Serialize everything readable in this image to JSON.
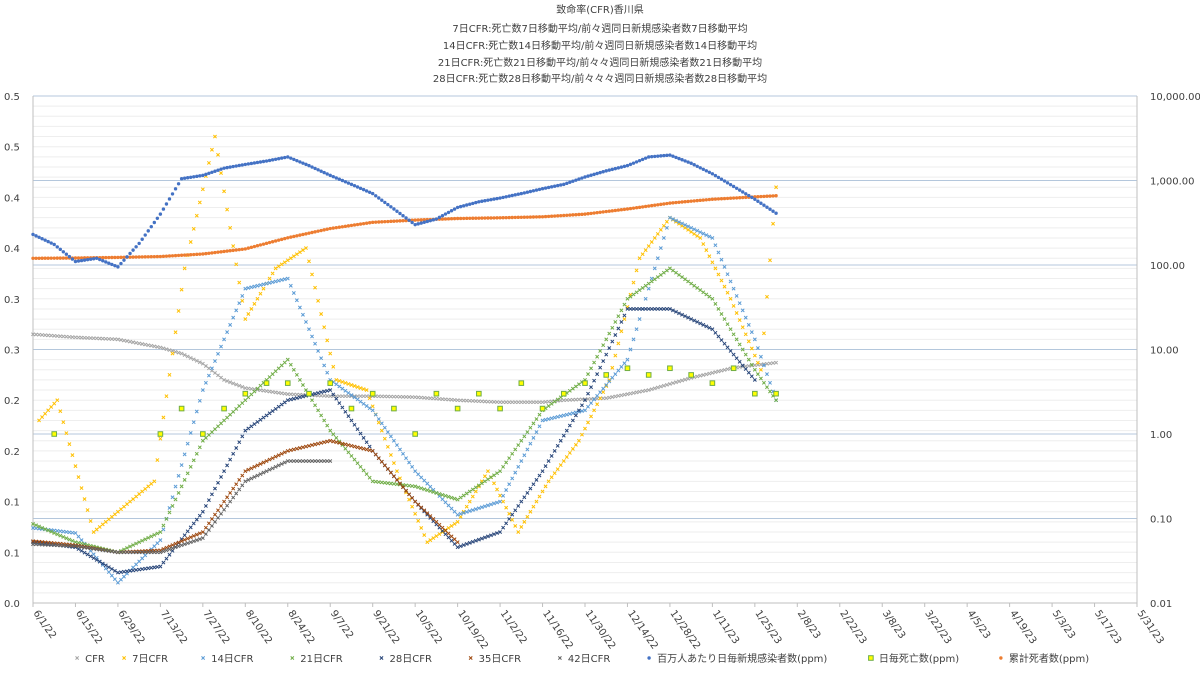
{
  "chart_data": {
    "type": "scatter",
    "title_lines": [
      "致命率(CFR)香川県",
      "7日CFR:死亡数7日移動平均/前々週同日新規感染者数7日移動平均",
      "14日CFR:死亡数14日移動平均/前々週同日新規感染者数14日移動平均",
      "21日CFR:死亡数21日移動平均/前々々週同日新規感染者数21日移動平均",
      "28日CFR:死亡数28日移動平均/前々々々週同日新規感染者数28日移動平均"
    ],
    "x_tick_labels": [
      "6/1/22",
      "6/15/22",
      "6/29/22",
      "7/13/22",
      "7/27/22",
      "8/10/22",
      "8/24/22",
      "9/7/22",
      "9/21/22",
      "10/5/22",
      "10/19/22",
      "11/2/22",
      "11/16/22",
      "11/30/22",
      "12/14/22",
      "12/28/22",
      "1/11/23",
      "1/25/23",
      "2/8/23",
      "2/22/23",
      "3/8/23",
      "3/22/23",
      "4/5/23",
      "4/19/23",
      "5/3/23",
      "5/17/23",
      "5/31/23"
    ],
    "left_axis_tick_labels": [
      "0.5",
      "0.5",
      "0.4",
      "0.4",
      "0.3",
      "0.3",
      "0.2",
      "0.2",
      "0.1",
      "0.1",
      "0.0"
    ],
    "right_axis_tick_labels": [
      "10,000.00",
      "1,000.00",
      "100.00",
      "10.00",
      "1.00",
      "0.10",
      "0.01"
    ],
    "left_axis_range": [
      0,
      0.5
    ],
    "right_axis_log_range": [
      0.01,
      10000
    ],
    "grid": true,
    "legend_position": "bottom",
    "legend": [
      {
        "name": "CFR",
        "color": "#a5a5a5",
        "marker": "x"
      },
      {
        "name": "7日CFR",
        "color": "#ffc000",
        "marker": "x"
      },
      {
        "name": "14日CFR",
        "color": "#5b9bd5",
        "marker": "x"
      },
      {
        "name": "21日CFR",
        "color": "#70ad47",
        "marker": "x"
      },
      {
        "name": "28日CFR",
        "color": "#264478",
        "marker": "x"
      },
      {
        "name": "35日CFR",
        "color": "#9e480e",
        "marker": "x"
      },
      {
        "name": "42日CFR",
        "color": "#636363",
        "marker": "x"
      },
      {
        "name": "百万人あたり日毎新規感染者数(ppm)",
        "color": "#4472c4",
        "marker": "dot"
      },
      {
        "name": "日毎死亡数(ppm)",
        "color": "#70ad47",
        "marker": "square"
      },
      {
        "name": "累計死者数(ppm)",
        "color": "#ed7d31",
        "marker": "dot"
      }
    ],
    "series": [
      {
        "name": "百万人あたり日毎新規感染者数(ppm)",
        "axis": "right",
        "style": "dot",
        "color": "#4472c4",
        "points": [
          [
            0,
            230
          ],
          [
            7,
            175
          ],
          [
            14,
            110
          ],
          [
            21,
            120
          ],
          [
            28,
            95
          ],
          [
            35,
            180
          ],
          [
            42,
            400
          ],
          [
            49,
            1050
          ],
          [
            56,
            1150
          ],
          [
            63,
            1400
          ],
          [
            70,
            1550
          ],
          [
            77,
            1700
          ],
          [
            84,
            1900
          ],
          [
            91,
            1500
          ],
          [
            98,
            1150
          ],
          [
            105,
            900
          ],
          [
            112,
            700
          ],
          [
            119,
            460
          ],
          [
            126,
            300
          ],
          [
            133,
            350
          ],
          [
            140,
            480
          ],
          [
            147,
            560
          ],
          [
            154,
            620
          ],
          [
            161,
            700
          ],
          [
            168,
            800
          ],
          [
            175,
            900
          ],
          [
            182,
            1100
          ],
          [
            189,
            1300
          ],
          [
            196,
            1500
          ],
          [
            203,
            1900
          ],
          [
            210,
            2000
          ],
          [
            217,
            1600
          ],
          [
            224,
            1200
          ],
          [
            231,
            850
          ],
          [
            238,
            600
          ],
          [
            245,
            410
          ]
        ]
      },
      {
        "name": "累計死者数(ppm)",
        "axis": "right",
        "style": "dot",
        "color": "#ed7d31",
        "points": [
          [
            0,
            120
          ],
          [
            14,
            121
          ],
          [
            28,
            123
          ],
          [
            42,
            126
          ],
          [
            56,
            135
          ],
          [
            70,
            155
          ],
          [
            84,
            210
          ],
          [
            98,
            270
          ],
          [
            112,
            320
          ],
          [
            126,
            340
          ],
          [
            140,
            355
          ],
          [
            154,
            362
          ],
          [
            168,
            372
          ],
          [
            182,
            400
          ],
          [
            196,
            460
          ],
          [
            210,
            540
          ],
          [
            224,
            600
          ],
          [
            238,
            640
          ],
          [
            245,
            660
          ]
        ]
      },
      {
        "name": "日毎死亡数(ppm)",
        "axis": "right",
        "style": "square",
        "color": "#70ad47",
        "points": [
          [
            7,
            1.0
          ],
          [
            42,
            1.0
          ],
          [
            49,
            2.0
          ],
          [
            56,
            1.0
          ],
          [
            63,
            2.0
          ],
          [
            70,
            3.0
          ],
          [
            77,
            4.0
          ],
          [
            84,
            4.0
          ],
          [
            91,
            3.0
          ],
          [
            98,
            4.0
          ],
          [
            105,
            2.0
          ],
          [
            112,
            3.0
          ],
          [
            119,
            2.0
          ],
          [
            126,
            1.0
          ],
          [
            133,
            3.0
          ],
          [
            140,
            2.0
          ],
          [
            147,
            3.0
          ],
          [
            154,
            2.0
          ],
          [
            161,
            4.0
          ],
          [
            168,
            2.0
          ],
          [
            175,
            3.0
          ],
          [
            182,
            4.0
          ],
          [
            189,
            5.0
          ],
          [
            196,
            6.0
          ],
          [
            203,
            5.0
          ],
          [
            210,
            6.0
          ],
          [
            217,
            5.0
          ],
          [
            224,
            4.0
          ],
          [
            231,
            6.0
          ],
          [
            238,
            3.0
          ],
          [
            245,
            3.0
          ]
        ]
      },
      {
        "name": "CFR",
        "axis": "left",
        "style": "x",
        "color": "#a5a5a5",
        "points": [
          [
            0,
            0.265
          ],
          [
            14,
            0.262
          ],
          [
            28,
            0.26
          ],
          [
            42,
            0.252
          ],
          [
            49,
            0.246
          ],
          [
            56,
            0.236
          ],
          [
            63,
            0.22
          ],
          [
            70,
            0.212
          ],
          [
            84,
            0.206
          ],
          [
            98,
            0.204
          ],
          [
            112,
            0.204
          ],
          [
            126,
            0.203
          ],
          [
            140,
            0.2
          ],
          [
            154,
            0.198
          ],
          [
            168,
            0.198
          ],
          [
            175,
            0.2
          ],
          [
            189,
            0.202
          ],
          [
            203,
            0.21
          ],
          [
            217,
            0.222
          ],
          [
            231,
            0.232
          ],
          [
            245,
            0.237
          ]
        ]
      },
      {
        "name": "7日CFR",
        "axis": "left",
        "style": "x",
        "color": "#ffc000",
        "points": [
          [
            2,
            0.18
          ],
          [
            8,
            0.2
          ],
          [
            20,
            0.07
          ],
          [
            40,
            0.12
          ],
          [
            50,
            0.33
          ],
          [
            60,
            0.46
          ],
          [
            70,
            0.28
          ],
          [
            80,
            0.33
          ],
          [
            90,
            0.35
          ],
          [
            100,
            0.22
          ],
          [
            110,
            0.21
          ],
          [
            120,
            0.13
          ],
          [
            130,
            0.06
          ],
          [
            140,
            0.08
          ],
          [
            150,
            0.13
          ],
          [
            160,
            0.07
          ],
          [
            170,
            0.12
          ],
          [
            180,
            0.16
          ],
          [
            190,
            0.22
          ],
          [
            200,
            0.34
          ],
          [
            210,
            0.38
          ],
          [
            220,
            0.36
          ],
          [
            230,
            0.3
          ],
          [
            240,
            0.23
          ],
          [
            245,
            0.41
          ]
        ]
      },
      {
        "name": "14日CFR",
        "axis": "left",
        "style": "x",
        "color": "#5b9bd5",
        "points": [
          [
            0,
            0.074
          ],
          [
            14,
            0.069
          ],
          [
            28,
            0.02
          ],
          [
            42,
            0.062
          ],
          [
            56,
            0.21
          ],
          [
            70,
            0.31
          ],
          [
            84,
            0.32
          ],
          [
            98,
            0.22
          ],
          [
            112,
            0.19
          ],
          [
            126,
            0.13
          ],
          [
            140,
            0.087
          ],
          [
            154,
            0.1
          ],
          [
            168,
            0.18
          ],
          [
            182,
            0.19
          ],
          [
            196,
            0.24
          ],
          [
            210,
            0.38
          ],
          [
            224,
            0.36
          ],
          [
            238,
            0.26
          ],
          [
            245,
            0.2
          ]
        ]
      },
      {
        "name": "21日CFR",
        "axis": "left",
        "style": "x",
        "color": "#70ad47",
        "points": [
          [
            0,
            0.078
          ],
          [
            14,
            0.06
          ],
          [
            28,
            0.05
          ],
          [
            42,
            0.07
          ],
          [
            56,
            0.16
          ],
          [
            70,
            0.2
          ],
          [
            84,
            0.24
          ],
          [
            98,
            0.17
          ],
          [
            112,
            0.12
          ],
          [
            126,
            0.115
          ],
          [
            140,
            0.102
          ],
          [
            154,
            0.13
          ],
          [
            168,
            0.19
          ],
          [
            182,
            0.22
          ],
          [
            196,
            0.3
          ],
          [
            210,
            0.33
          ],
          [
            224,
            0.3
          ],
          [
            238,
            0.23
          ],
          [
            245,
            0.2
          ]
        ]
      },
      {
        "name": "28日CFR",
        "axis": "left",
        "style": "x",
        "color": "#264478",
        "points": [
          [
            0,
            0.06
          ],
          [
            14,
            0.055
          ],
          [
            28,
            0.03
          ],
          [
            42,
            0.036
          ],
          [
            56,
            0.09
          ],
          [
            70,
            0.17
          ],
          [
            84,
            0.2
          ],
          [
            98,
            0.21
          ],
          [
            112,
            0.15
          ],
          [
            126,
            0.1
          ],
          [
            140,
            0.055
          ],
          [
            154,
            0.07
          ],
          [
            168,
            0.13
          ],
          [
            182,
            0.2
          ],
          [
            196,
            0.29
          ],
          [
            210,
            0.29
          ],
          [
            224,
            0.27
          ],
          [
            238,
            0.22
          ]
        ]
      },
      {
        "name": "35日CFR",
        "axis": "left",
        "style": "x",
        "color": "#9e480e",
        "points": [
          [
            0,
            0.061
          ],
          [
            14,
            0.057
          ],
          [
            28,
            0.05
          ],
          [
            42,
            0.052
          ],
          [
            56,
            0.07
          ],
          [
            70,
            0.13
          ],
          [
            84,
            0.15
          ],
          [
            98,
            0.16
          ],
          [
            112,
            0.15
          ],
          [
            126,
            0.1
          ],
          [
            140,
            0.06
          ]
        ]
      },
      {
        "name": "42日CFR",
        "axis": "left",
        "style": "x",
        "color": "#636363",
        "points": [
          [
            0,
            0.058
          ],
          [
            14,
            0.056
          ],
          [
            28,
            0.05
          ],
          [
            42,
            0.05
          ],
          [
            56,
            0.064
          ],
          [
            70,
            0.12
          ],
          [
            84,
            0.14
          ],
          [
            98,
            0.14
          ]
        ]
      }
    ]
  }
}
